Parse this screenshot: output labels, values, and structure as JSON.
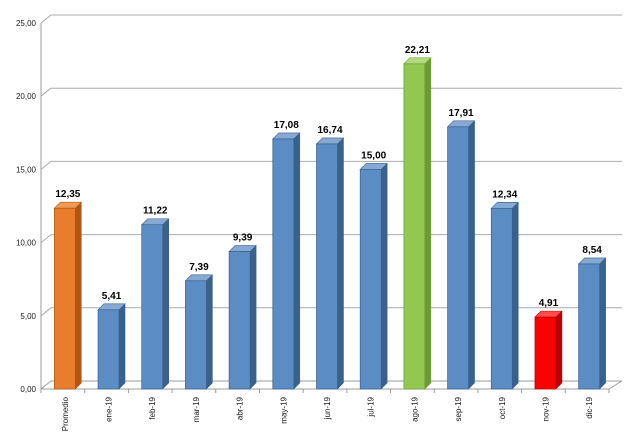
{
  "chart_data": {
    "type": "bar",
    "style": "excel-3d-column",
    "title": "",
    "xlabel": "",
    "ylabel": "",
    "categories": [
      "Promedio",
      "ene-19",
      "feb-19",
      "mar-19",
      "abr-19",
      "may-19",
      "jun-19",
      "jul-19",
      "ago-19",
      "sep-19",
      "oct-19",
      "nov-19",
      "dic-19"
    ],
    "values": [
      12.35,
      5.41,
      11.22,
      7.39,
      9.39,
      17.08,
      16.74,
      15.0,
      22.21,
      17.91,
      12.34,
      4.91,
      8.54
    ],
    "value_labels": [
      "12,35",
      "5,41",
      "11,22",
      "7,39",
      "9,39",
      "17,08",
      "16,74",
      "15,00",
      "22,21",
      "17,91",
      "12,34",
      "4,91",
      "8,54"
    ],
    "bar_color_names": [
      "orange",
      "blue",
      "blue",
      "blue",
      "blue",
      "blue",
      "blue",
      "blue",
      "green",
      "blue",
      "blue",
      "red",
      "blue"
    ],
    "palette": {
      "orange": {
        "front": "#E87D2C",
        "side": "#AE5714",
        "top": "#F09C57"
      },
      "blue": {
        "front": "#5B8DC4",
        "side": "#38618E",
        "top": "#85A9D2"
      },
      "green": {
        "front": "#92C850",
        "side": "#6B9C34",
        "top": "#B2DA7E"
      },
      "red": {
        "front": "#FE0000",
        "side": "#B90000",
        "top": "#FF4B4B"
      }
    },
    "ylim": [
      0,
      25
    ],
    "ytick_values": [
      0,
      5,
      10,
      15,
      20,
      25
    ],
    "ytick_labels": [
      "0,00",
      "5,00",
      "10,00",
      "15,00",
      "20,00",
      "25,00"
    ],
    "grid": true,
    "legend": false,
    "legend_position": "none",
    "axis_color": "#9B9B9B",
    "gridline_color": "#ACACAC",
    "text_color": "#1A1A1A",
    "value_label_color": "#000000"
  }
}
